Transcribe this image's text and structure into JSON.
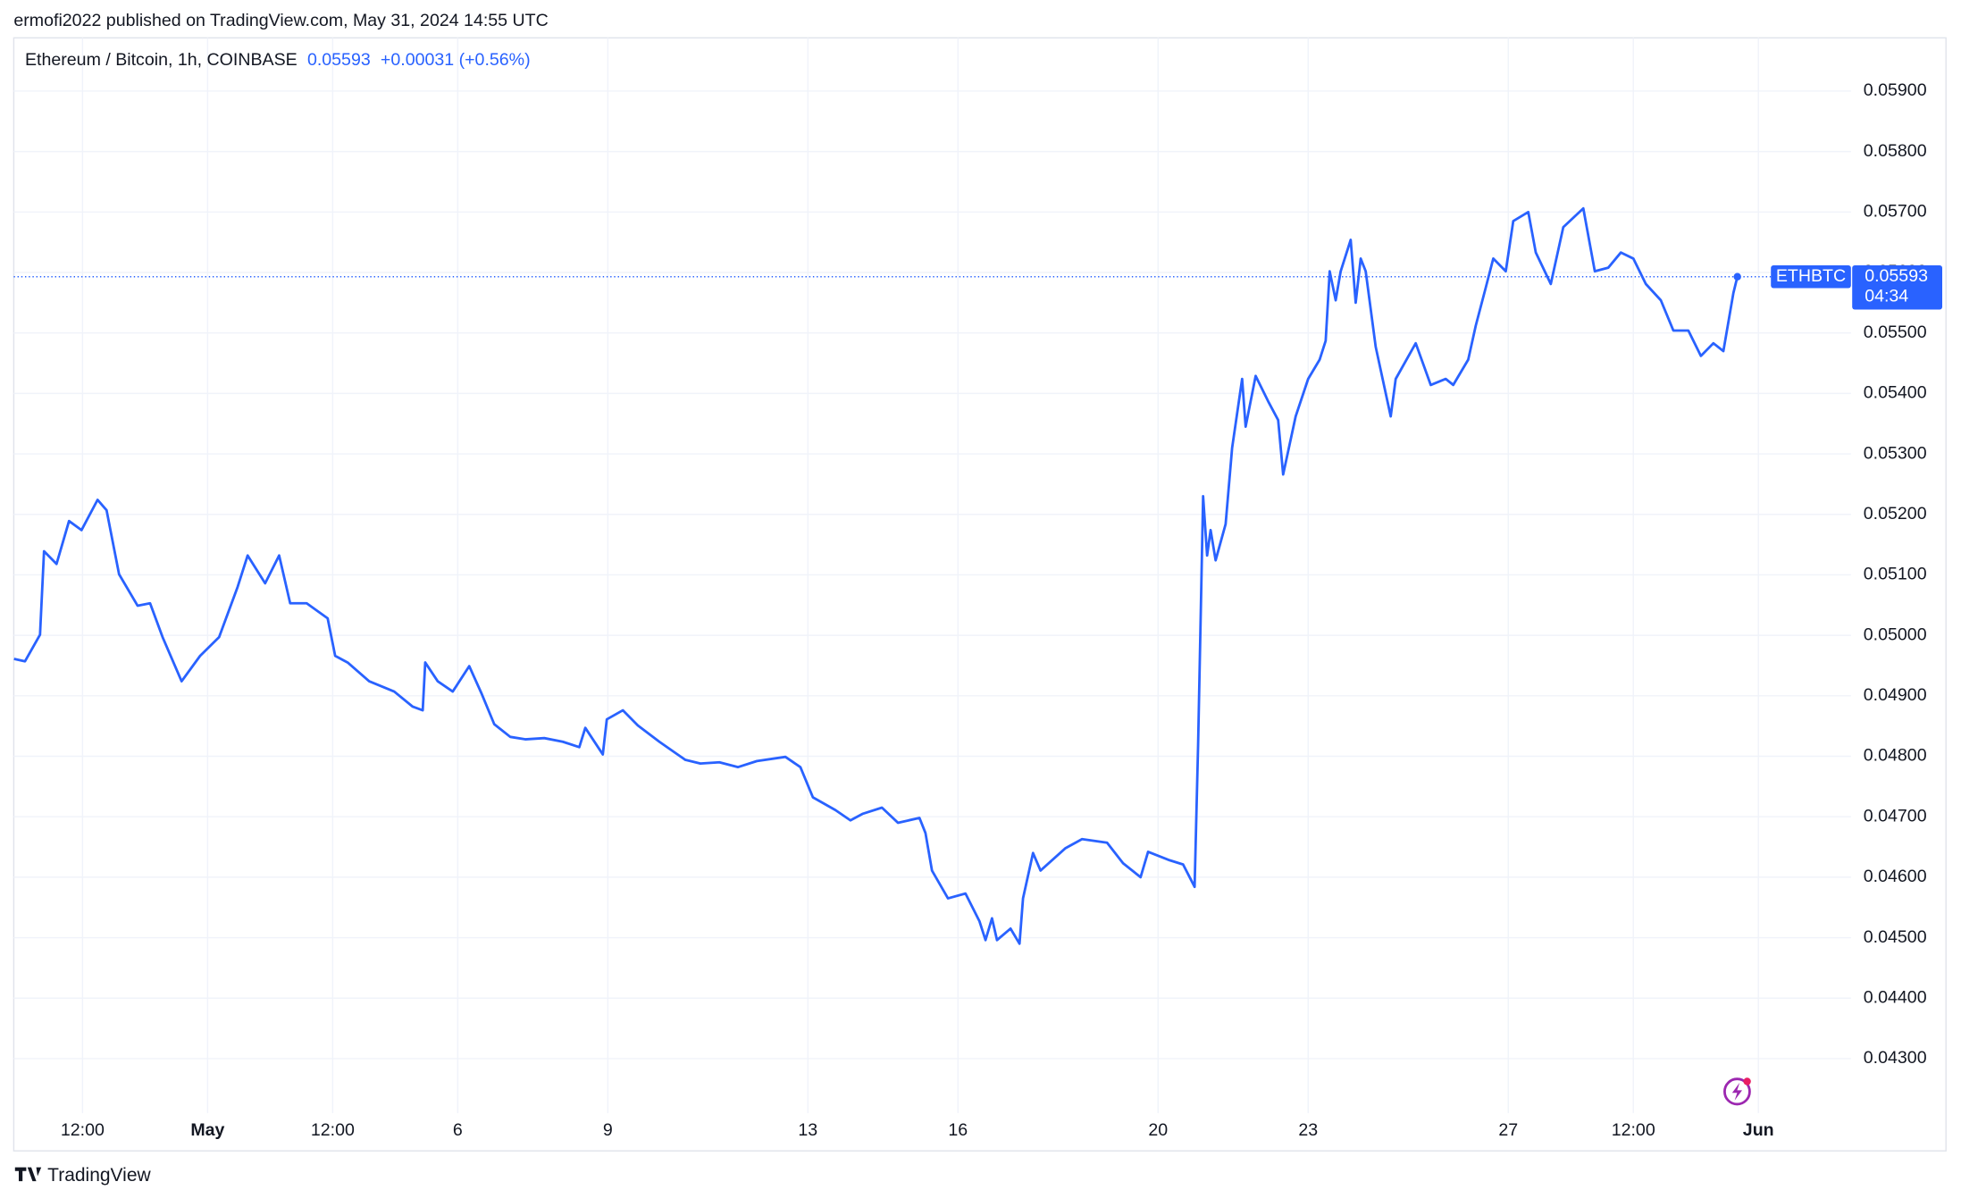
{
  "header": {
    "published": "ermofi2022 published on TradingView.com, May 31, 2024 14:55 UTC"
  },
  "footer": {
    "brand": "TradingView"
  },
  "chart_data": {
    "type": "line",
    "title": "Ethereum / Bitcoin, 1h, COINBASE",
    "last_price": 0.05593,
    "change_label": "+0.00031 (+0.56%)",
    "symbol": "ETHBTC",
    "countdown": "04:34",
    "grid": true,
    "xlim": [
      27.125,
      63.85
    ],
    "xticks": [
      {
        "value": 28.5,
        "label": "12:00"
      },
      {
        "value": 31,
        "label": "May"
      },
      {
        "value": 33.5,
        "label": "12:00"
      },
      {
        "value": 36,
        "label": "6"
      },
      {
        "value": 39,
        "label": "9"
      },
      {
        "value": 43,
        "label": "13"
      },
      {
        "value": 46,
        "label": "16"
      },
      {
        "value": 50,
        "label": "20"
      },
      {
        "value": 53,
        "label": "23"
      },
      {
        "value": 57,
        "label": "27"
      },
      {
        "value": 59.5,
        "label": "12:00"
      },
      {
        "value": 62,
        "label": "Jun"
      }
    ],
    "ylim": [
      0.0421,
      0.05988
    ],
    "yticks": [
      {
        "value": 0.043,
        "label": "0.04300"
      },
      {
        "value": 0.044,
        "label": "0.04400"
      },
      {
        "value": 0.045,
        "label": "0.04500"
      },
      {
        "value": 0.046,
        "label": "0.04600"
      },
      {
        "value": 0.047,
        "label": "0.04700"
      },
      {
        "value": 0.048,
        "label": "0.04800"
      },
      {
        "value": 0.049,
        "label": "0.04900"
      },
      {
        "value": 0.05,
        "label": "0.05000"
      },
      {
        "value": 0.051,
        "label": "0.05100"
      },
      {
        "value": 0.052,
        "label": "0.05200"
      },
      {
        "value": 0.053,
        "label": "0.05300"
      },
      {
        "value": 0.054,
        "label": "0.05400"
      },
      {
        "value": 0.055,
        "label": "0.05500"
      },
      {
        "value": 0.056,
        "label": "0.05600"
      },
      {
        "value": 0.057,
        "label": "0.05700"
      },
      {
        "value": 0.058,
        "label": "0.05800"
      },
      {
        "value": 0.059,
        "label": "0.05900"
      }
    ],
    "x": [
      27.13,
      27.35,
      27.65,
      27.73,
      27.98,
      28.23,
      28.48,
      28.8,
      28.98,
      29.23,
      29.6,
      29.85,
      30.1,
      30.48,
      30.85,
      31.23,
      31.6,
      31.8,
      32.15,
      32.43,
      32.65,
      32.98,
      33.4,
      33.55,
      33.8,
      34.23,
      34.73,
      35.1,
      35.3,
      35.35,
      35.6,
      35.9,
      36.23,
      36.48,
      36.73,
      37.05,
      37.35,
      37.73,
      38.1,
      38.43,
      38.55,
      38.9,
      38.98,
      39.3,
      39.6,
      40.03,
      40.55,
      40.85,
      41.23,
      41.6,
      41.98,
      42.55,
      42.85,
      43.1,
      43.55,
      43.85,
      44.1,
      44.48,
      44.8,
      45.23,
      45.35,
      45.48,
      45.8,
      46.15,
      46.43,
      46.55,
      46.68,
      46.78,
      47.05,
      47.23,
      47.3,
      47.5,
      47.65,
      48.15,
      48.48,
      48.98,
      49.3,
      49.65,
      49.8,
      50.23,
      50.5,
      50.73,
      50.8,
      50.9,
      50.98,
      51.05,
      51.15,
      51.35,
      51.48,
      51.68,
      51.75,
      51.95,
      52.2,
      52.4,
      52.5,
      52.75,
      53.0,
      53.23,
      53.35,
      53.43,
      53.55,
      53.65,
      53.85,
      53.95,
      54.05,
      54.15,
      54.35,
      54.65,
      54.75,
      55.15,
      55.45,
      55.75,
      55.9,
      56.2,
      56.35,
      56.55,
      56.7,
      56.95,
      57.1,
      57.4,
      57.55,
      57.85,
      58.1,
      58.5,
      58.73,
      59.0,
      59.25,
      59.5,
      59.75,
      60.05,
      60.3,
      60.6,
      60.85,
      61.1,
      61.3,
      61.5,
      61.58
    ],
    "series": [
      {
        "name": "ETHBTC",
        "color": "#2962ff",
        "values": [
          0.04961,
          0.04957,
          0.05001,
          0.05139,
          0.05118,
          0.05189,
          0.05174,
          0.05224,
          0.05207,
          0.05101,
          0.05049,
          0.05053,
          0.04997,
          0.04924,
          0.04966,
          0.04997,
          0.0508,
          0.05132,
          0.05086,
          0.05132,
          0.05053,
          0.05053,
          0.05028,
          0.04966,
          0.04955,
          0.04924,
          0.04907,
          0.04882,
          0.04876,
          0.04955,
          0.04924,
          0.04907,
          0.04949,
          0.04903,
          0.04853,
          0.04832,
          0.04828,
          0.0483,
          0.04824,
          0.04815,
          0.04847,
          0.04803,
          0.04861,
          0.04876,
          0.04851,
          0.04824,
          0.04794,
          0.04788,
          0.0479,
          0.04782,
          0.04792,
          0.04799,
          0.04782,
          0.04732,
          0.04711,
          0.04694,
          0.04705,
          0.04715,
          0.0469,
          0.04698,
          0.04673,
          0.04611,
          0.04565,
          0.04573,
          0.04527,
          0.04496,
          0.04532,
          0.04496,
          0.04515,
          0.0449,
          0.04565,
          0.0464,
          0.04611,
          0.04648,
          0.04663,
          0.04657,
          0.04623,
          0.046,
          0.04642,
          0.04628,
          0.04621,
          0.04584,
          0.04819,
          0.0523,
          0.05132,
          0.05174,
          0.05124,
          0.05184,
          0.0531,
          0.05424,
          0.05345,
          0.05429,
          0.05387,
          0.05356,
          0.05266,
          0.05362,
          0.05424,
          0.05456,
          0.05487,
          0.05602,
          0.05554,
          0.05602,
          0.05654,
          0.0555,
          0.05623,
          0.05602,
          0.05477,
          0.05362,
          0.05424,
          0.05483,
          0.05414,
          0.05424,
          0.05414,
          0.05456,
          0.05512,
          0.05575,
          0.05623,
          0.05602,
          0.05685,
          0.057,
          0.05633,
          0.05581,
          0.05675,
          0.05706,
          0.05602,
          0.05608,
          0.05633,
          0.05623,
          0.05581,
          0.05554,
          0.05504,
          0.05504,
          0.05462,
          0.05483,
          0.0547,
          0.05566,
          0.05593
        ]
      }
    ]
  }
}
